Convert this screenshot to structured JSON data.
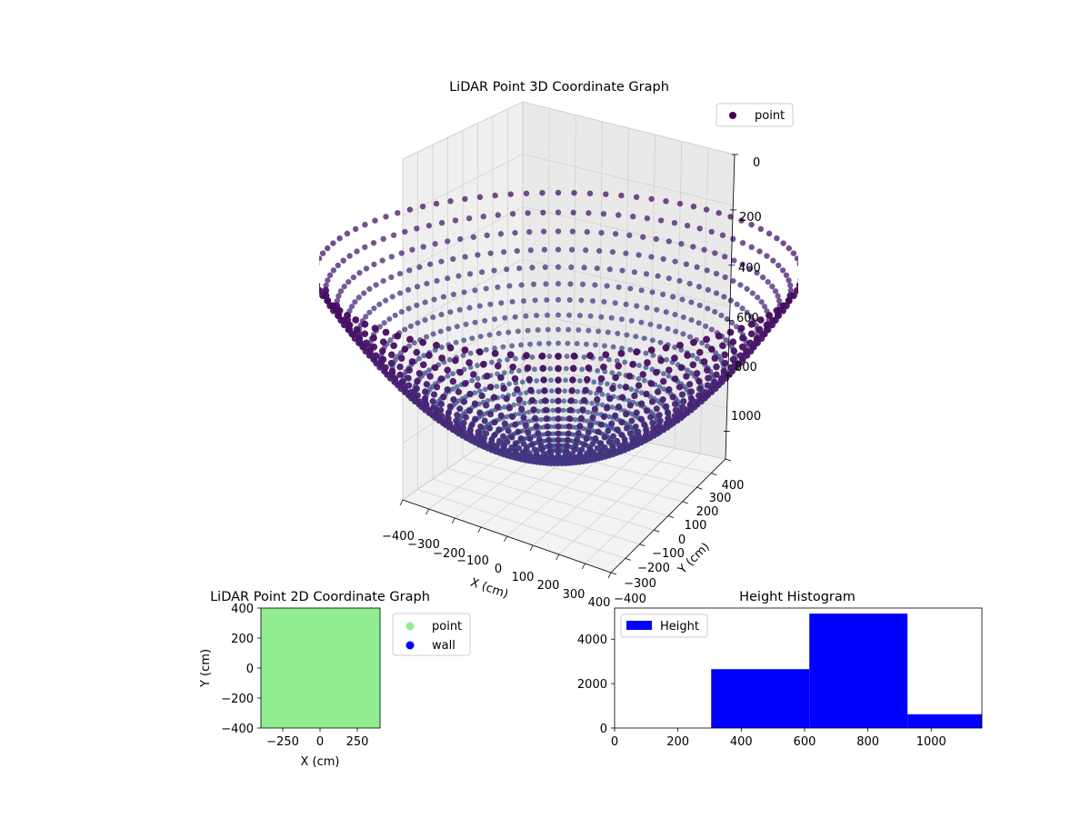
{
  "chart_data": [
    {
      "type": "scatter",
      "projection": "3d",
      "title": "LiDAR Point 3D Coordinate Graph",
      "xlabel": "X (cm)",
      "ylabel": "Y (cm)",
      "zlabel": "",
      "xlim": [
        -400,
        400
      ],
      "ylim": [
        -400,
        400
      ],
      "zlim": [
        1100,
        0
      ],
      "x_ticks": [
        "−400",
        "−300",
        "−200",
        "−100",
        "0",
        "100",
        "200",
        "300",
        "400"
      ],
      "y_ticks": [
        "−400",
        "−300",
        "−200",
        "−100",
        "0",
        "100",
        "200",
        "300",
        "400"
      ],
      "z_ticks": [
        "0",
        "200",
        "400",
        "600",
        "800",
        "1000"
      ],
      "shape": "hemispherical bowl of points, radius ~400 cm, depth ~1100 cm",
      "series": [
        {
          "name": "point",
          "color": "#440154",
          "colormap": "viridis"
        }
      ],
      "legend": "top-right",
      "grid": true
    },
    {
      "type": "scatter",
      "title": "LiDAR Point 2D Coordinate Graph",
      "xlabel": "X (cm)",
      "ylabel": "Y (cm)",
      "xlim": [
        -400,
        400
      ],
      "ylim": [
        -400,
        400
      ],
      "x_ticks": [
        "−250",
        "0",
        "250"
      ],
      "y_ticks": [
        "−400",
        "−200",
        "0",
        "200",
        "400"
      ],
      "series": [
        {
          "name": "point",
          "color": "#90ee90"
        },
        {
          "name": "wall",
          "color": "#0000ff"
        }
      ],
      "legend": "outside-right",
      "grid": false
    },
    {
      "type": "bar",
      "title": "Height Histogram",
      "xlabel": "",
      "ylabel": "",
      "bins": [
        {
          "x0": 0,
          "x1": 305,
          "value": 0
        },
        {
          "x0": 305,
          "x1": 615,
          "value": 2650
        },
        {
          "x0": 615,
          "x1": 925,
          "value": 5150
        },
        {
          "x0": 925,
          "x1": 1160,
          "value": 620
        }
      ],
      "xlim": [
        0,
        1160
      ],
      "ylim": [
        0,
        5400
      ],
      "x_ticks": [
        0,
        200,
        400,
        600,
        800,
        1000
      ],
      "y_ticks": [
        0,
        2000,
        4000
      ],
      "series": [
        {
          "name": "Height",
          "color": "#0000ff"
        }
      ],
      "legend": "top-left",
      "grid": false
    }
  ]
}
